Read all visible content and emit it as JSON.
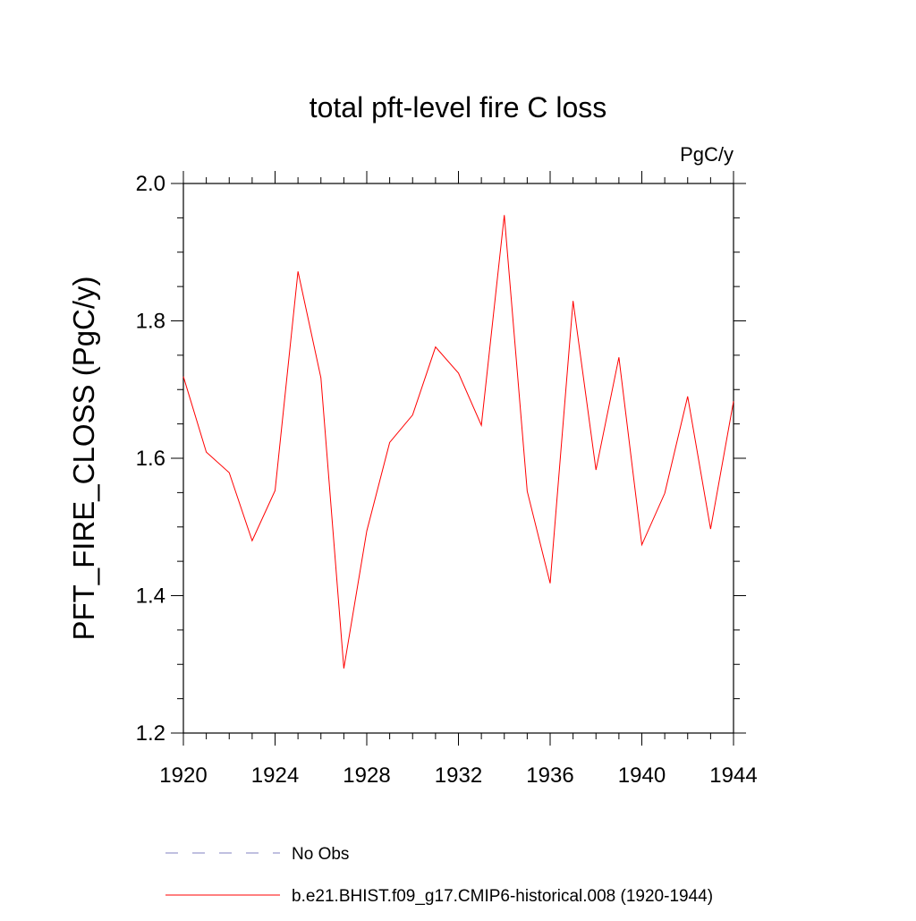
{
  "chart_data": {
    "type": "line",
    "title": "total pft-level fire C loss",
    "units": "PgC/y",
    "y_label": "PFT_FIRE_CLOSS  (PgC/y)",
    "x": [
      1920,
      1921,
      1922,
      1923,
      1924,
      1925,
      1926,
      1927,
      1928,
      1929,
      1930,
      1931,
      1932,
      1933,
      1934,
      1935,
      1936,
      1937,
      1938,
      1939,
      1940,
      1941,
      1942,
      1943,
      1944
    ],
    "series": [
      {
        "name": "b.e21.BHIST.f09_g17.CMIP6-historical.008 (1920-1944)",
        "color": "#ff0000",
        "values": [
          1.719,
          1.609,
          1.579,
          1.48,
          1.553,
          1.872,
          1.717,
          1.294,
          1.494,
          1.623,
          1.663,
          1.762,
          1.724,
          1.648,
          1.954,
          1.552,
          1.418,
          1.829,
          1.583,
          1.747,
          1.474,
          1.549,
          1.69,
          1.497,
          1.683
        ]
      }
    ],
    "legend_extra": [
      {
        "name": "No Obs",
        "color": "#8080c0",
        "dashed": true
      }
    ],
    "xlim": [
      1920,
      1944
    ],
    "xticks": [
      1920,
      1924,
      1928,
      1932,
      1936,
      1940,
      1944
    ],
    "xminorticks": [
      1921,
      1922,
      1923,
      1925,
      1926,
      1927,
      1929,
      1930,
      1931,
      1933,
      1934,
      1935,
      1937,
      1938,
      1939,
      1941,
      1942,
      1943
    ],
    "ylim": [
      1.2,
      2.0
    ],
    "yticks": [
      {
        "value": 1.2,
        "label": "1.2"
      },
      1.4,
      1.6,
      1.8,
      {
        "value": 2,
        "label": "2.0"
      }
    ],
    "yminorticks": [
      1.25,
      1.3,
      1.35,
      1.45,
      1.5,
      1.55,
      1.65,
      1.7,
      1.75,
      1.85,
      1.9,
      1.95
    ]
  }
}
